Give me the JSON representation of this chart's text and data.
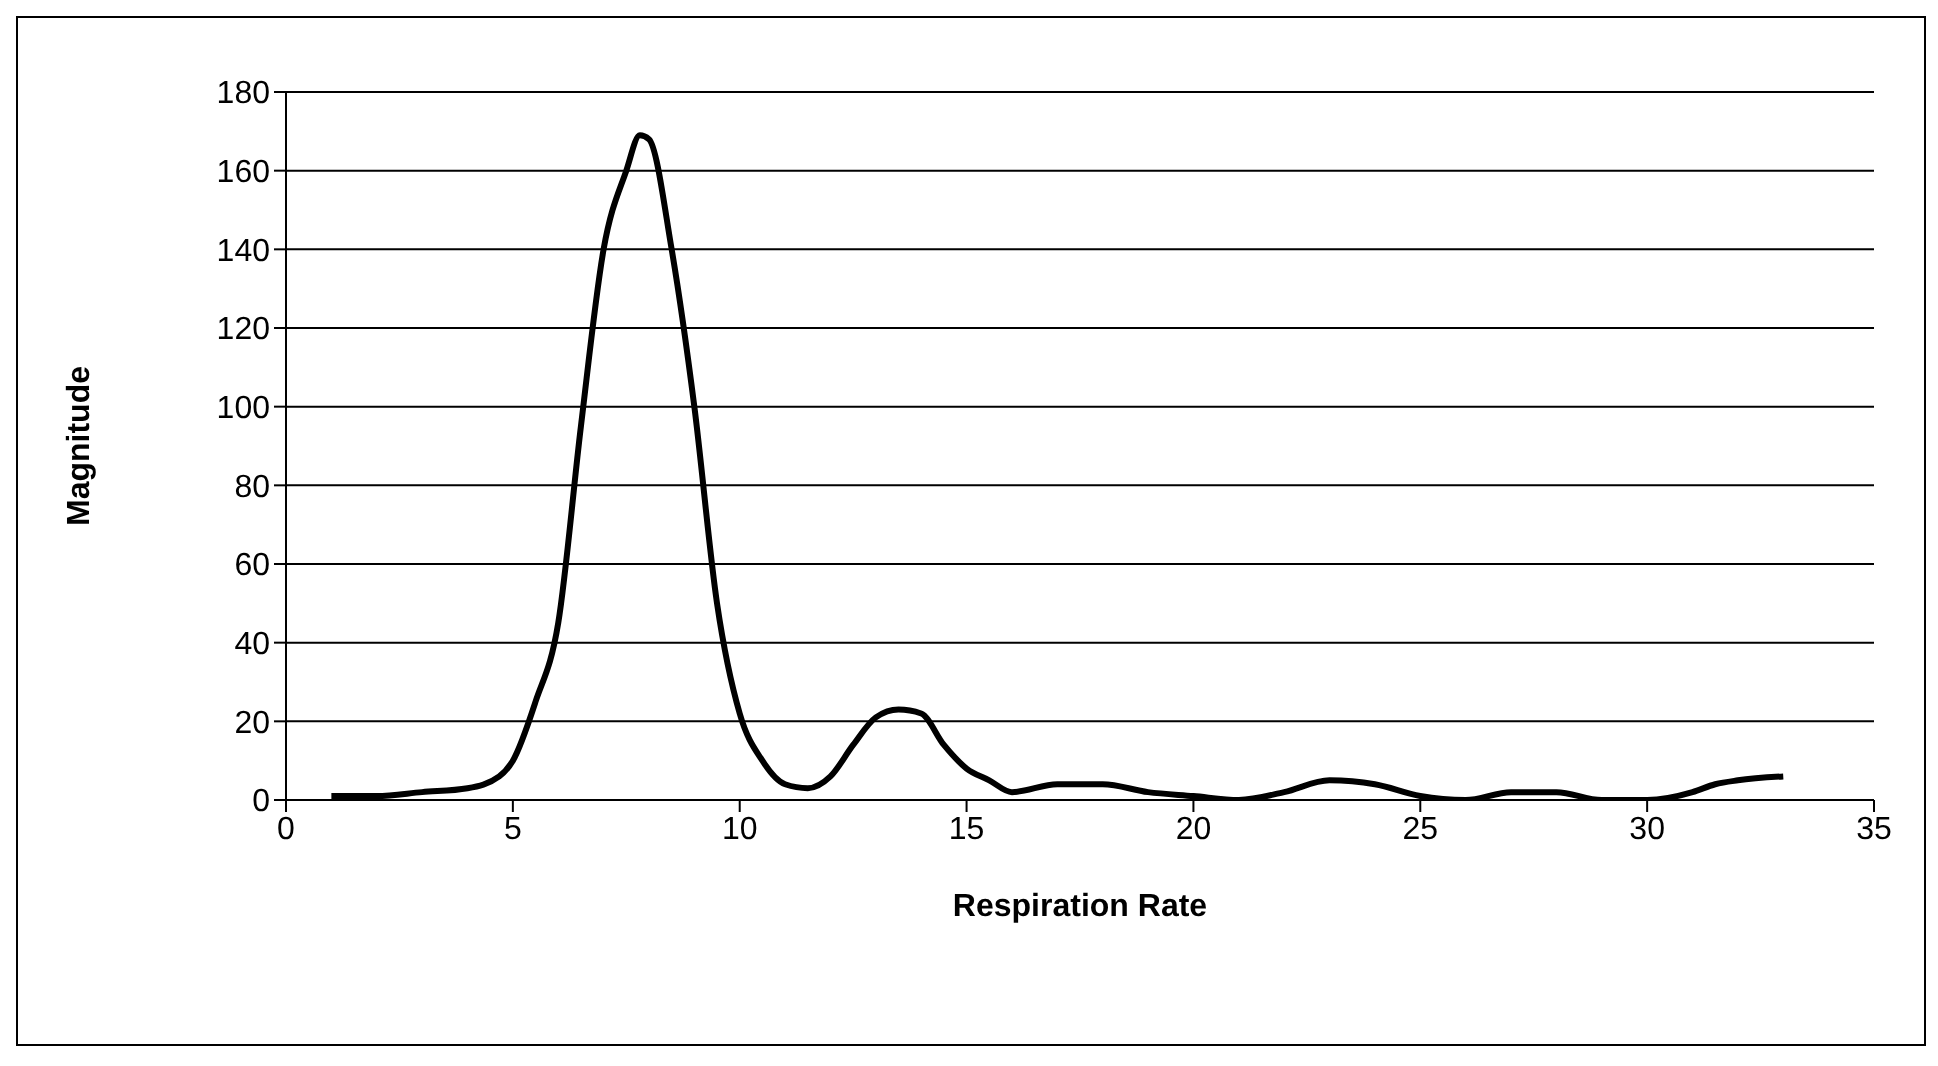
{
  "chart_data": {
    "type": "line",
    "xlabel": "Respiration Rate",
    "ylabel": "Magnitude",
    "x": [
      1,
      2,
      3,
      4,
      4.7,
      5,
      5.5,
      6,
      6.5,
      7,
      7.5,
      7.8,
      8,
      8.5,
      9,
      9.5,
      10,
      10.5,
      11,
      11.5,
      12,
      12.5,
      13,
      13.5,
      14,
      14.5,
      15,
      15.5,
      16,
      17,
      18,
      19,
      20,
      21,
      22,
      23,
      24,
      25,
      26,
      27,
      28,
      29,
      30,
      31,
      31.5,
      32,
      33
    ],
    "series": [
      {
        "color": "#000000",
        "values": [
          1,
          1,
          2,
          3,
          6,
          10,
          25,
          45,
          95,
          140,
          160,
          169,
          168,
          140,
          100,
          50,
          22,
          10,
          4,
          3,
          6,
          14,
          21,
          23,
          22,
          14,
          8,
          5,
          2,
          4,
          4,
          2,
          1,
          0,
          2,
          5,
          4,
          1,
          0,
          2,
          2,
          0,
          0,
          2,
          4,
          5,
          6
        ]
      }
    ],
    "xlim": [
      0,
      35
    ],
    "xticks": [
      0,
      5,
      10,
      15,
      20,
      25,
      30,
      35
    ],
    "ylim": [
      0,
      180
    ],
    "yticks": [
      0,
      20,
      40,
      60,
      80,
      100,
      120,
      140,
      160,
      180
    ],
    "grid": "y",
    "marker": "none",
    "line_style": "solid"
  }
}
